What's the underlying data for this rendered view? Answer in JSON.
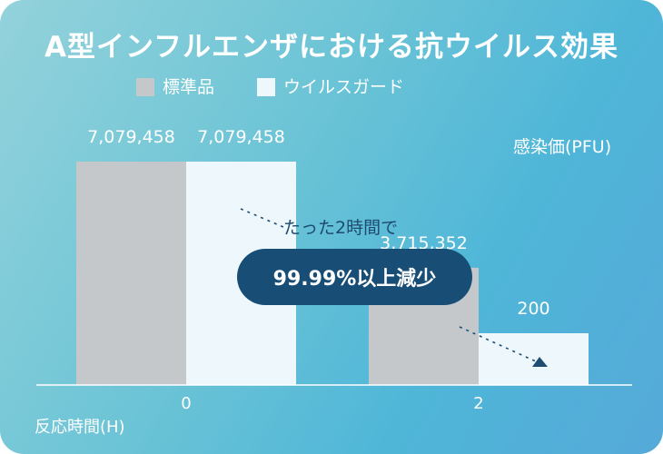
{
  "chart_data": {
    "type": "bar",
    "title": "A型インフルエンザにおける抗ウイルス効果",
    "xlabel": "反応時間(H)",
    "ylabel": "感染価(PFU)",
    "categories": [
      "0",
      "2"
    ],
    "series": [
      {
        "name": "標準品",
        "values": [
          7079458,
          3715352
        ],
        "labels": [
          "7,079,458",
          "3,715,352"
        ],
        "color": "#c4c8cb"
      },
      {
        "name": "ウイルスガード",
        "values": [
          7079458,
          200
        ],
        "labels": [
          "7,079,458",
          "200"
        ],
        "color": "#eef7fb"
      }
    ],
    "legend_position": "top",
    "grid": false,
    "annotations": {
      "note": "たった2時間で",
      "callout": "99.99%以上減少"
    }
  }
}
